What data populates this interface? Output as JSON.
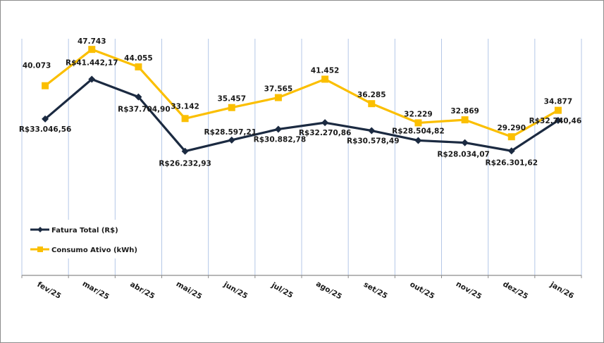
{
  "chart_data": {
    "type": "line",
    "title": "",
    "xlabel": "",
    "ylabel": "",
    "ylim": [
      0,
      50000
    ],
    "grid": "vertical",
    "legend_position": "bottom-left",
    "categories": [
      "fev/25",
      "mar/25",
      "abr/25",
      "mai/25",
      "jun/25",
      "jul/25",
      "ago/25",
      "set/25",
      "out/25",
      "nov/25",
      "dez/25",
      "jan/26"
    ],
    "series": [
      {
        "name": "Fatura Total (R$)",
        "color": "#1b2a41",
        "marker": "diamond",
        "label_position": "below",
        "values": [
          33046.56,
          41442.17,
          37704.9,
          26232.93,
          28597.21,
          30882.78,
          32270.86,
          30578.49,
          28504.82,
          28034.07,
          26301.62,
          32740.46
        ],
        "labels": [
          "R$33.046,56",
          "R$41.442,17",
          "R$37.704,90",
          "R$26.232,93",
          "R$28.597,21",
          "R$30.882,78",
          "R$32.270,86",
          "R$30.578,49",
          "R$28.504,82",
          "R$28.034,07",
          "R$26.301,62",
          "R$32.740,46"
        ]
      },
      {
        "name": "Consumo Ativo (kWh)",
        "color": "#fbbf00",
        "marker": "square",
        "label_position": "above",
        "values": [
          40073,
          47743,
          44055,
          33142,
          35457,
          37565,
          41452,
          36285,
          32229,
          32869,
          29290,
          34877
        ],
        "labels": [
          "40.073",
          "47.743",
          "44.055",
          "33.142",
          "35.457",
          "37.565",
          "41.452",
          "36.285",
          "32.229",
          "32.869",
          "29.290",
          "34.877"
        ]
      }
    ]
  },
  "colors": {
    "gridline": "#b4c7e7",
    "axis": "#8c8c8c"
  }
}
